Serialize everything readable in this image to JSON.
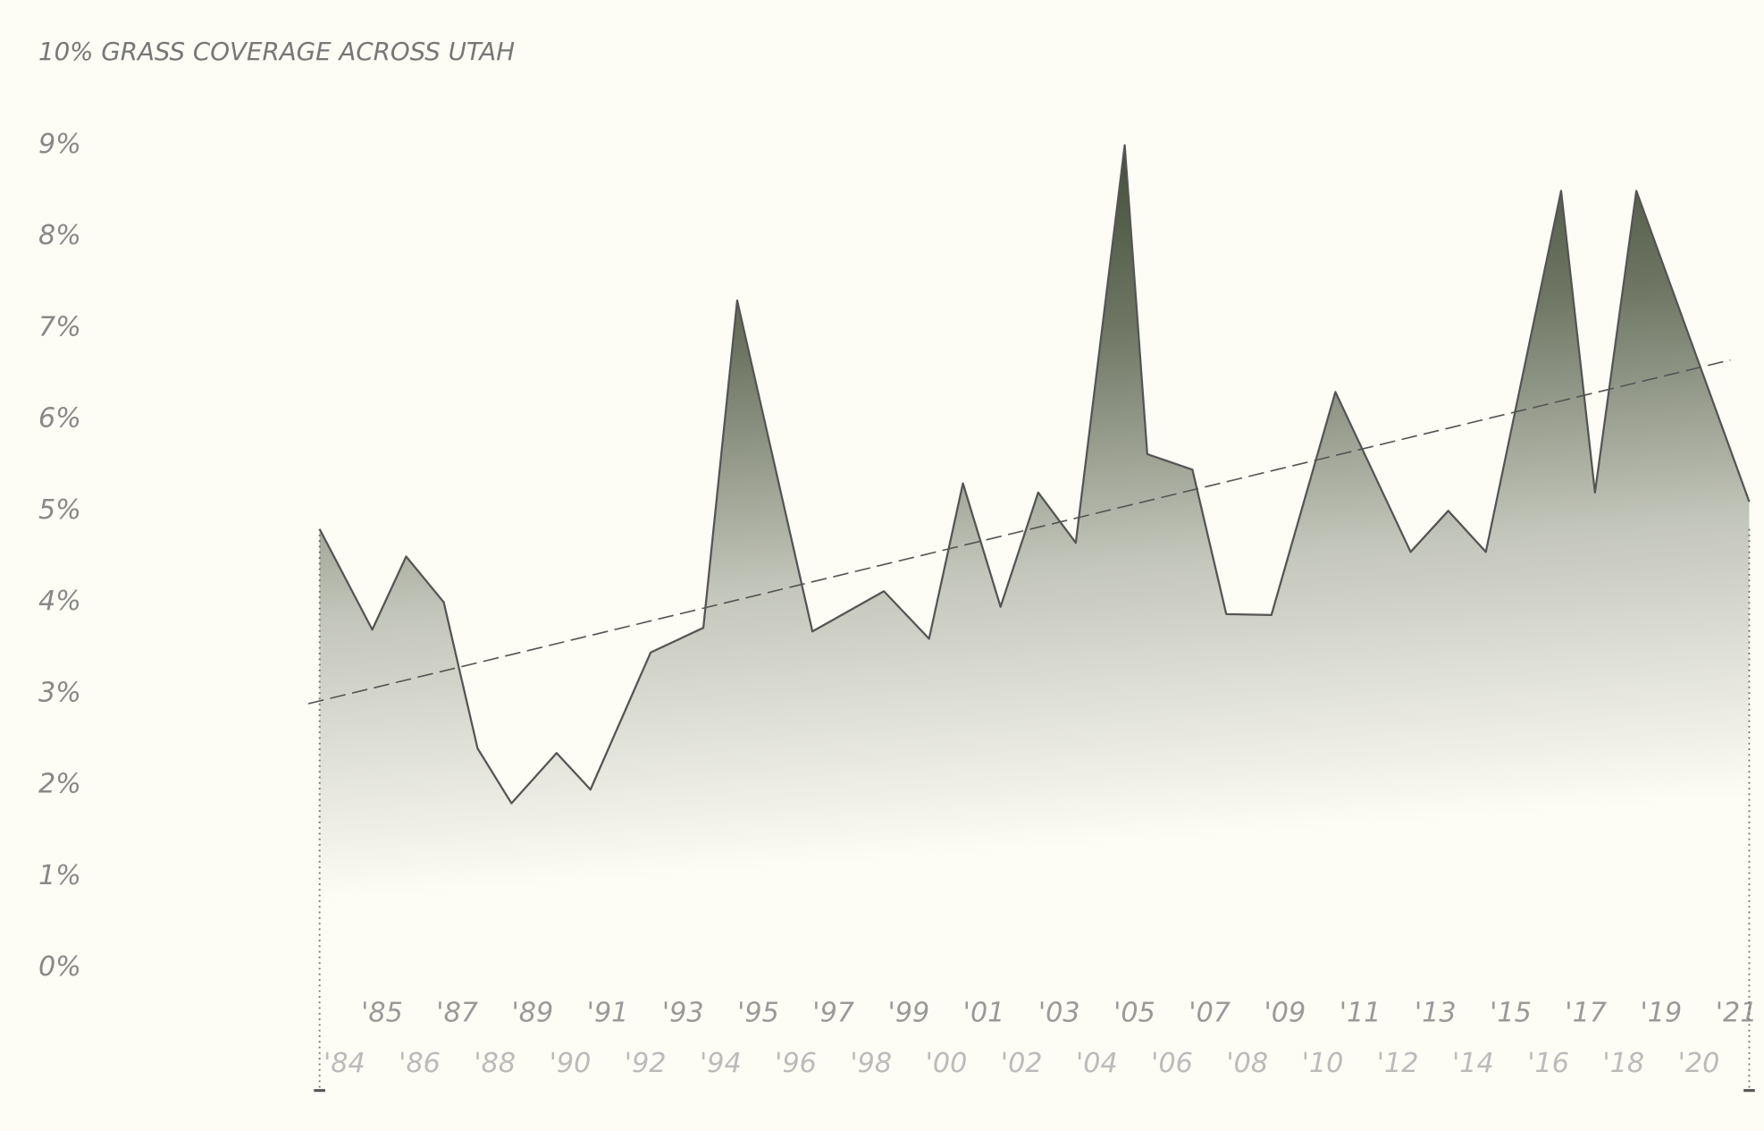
{
  "chart_data": {
    "type": "area",
    "title": "10% GRASS COVERAGE ACROSS UTAH",
    "series": [
      {
        "color": "#555555",
        "x": [
          1984.0,
          1985.4,
          1986.3,
          1987.3,
          1988.2,
          1989.1,
          1990.3,
          1991.2,
          1992.8,
          1994.2,
          1995.1,
          1997.1,
          1999.0,
          2000.2,
          2001.1,
          2002.1,
          2003.1,
          2004.1,
          2005.4,
          2006.0,
          2007.2,
          2008.1,
          2009.3,
          2011.0,
          2013.0,
          2014.0,
          2015.0,
          2017.0,
          2017.9,
          2019.0,
          2022.0
        ],
        "values": [
          4.8,
          3.7,
          4.5,
          4.0,
          2.4,
          1.8,
          2.35,
          1.95,
          3.45,
          3.72,
          7.3,
          3.68,
          4.12,
          3.6,
          5.3,
          3.95,
          5.2,
          4.65,
          9.0,
          5.62,
          5.45,
          3.87,
          3.86,
          6.3,
          4.55,
          5.0,
          4.55,
          8.5,
          5.2,
          8.5,
          5.1
        ]
      }
    ],
    "trend": {
      "x": [
        1983.7,
        2021.5
      ],
      "values": [
        2.89,
        6.65
      ],
      "color": "#555555"
    },
    "fill_color": "#3f4a33",
    "xlim": [
      1984,
      2022
    ],
    "ylim": [
      0,
      9
    ],
    "yticks": [
      {
        "value": 0,
        "label": "0%"
      },
      {
        "value": 1,
        "label": "1%"
      },
      {
        "value": 2,
        "label": "2%"
      },
      {
        "value": 3,
        "label": "3%"
      },
      {
        "value": 4,
        "label": "4%"
      },
      {
        "value": 5,
        "label": "5%"
      },
      {
        "value": 6,
        "label": "6%"
      },
      {
        "value": 7,
        "label": "7%"
      },
      {
        "value": 8,
        "label": "8%"
      },
      {
        "value": 9,
        "label": "9%"
      }
    ],
    "xticks": [
      {
        "value": 1984,
        "label": "'84"
      },
      {
        "value": 1985,
        "label": "'85"
      },
      {
        "value": 1986,
        "label": "'86"
      },
      {
        "value": 1987,
        "label": "'87"
      },
      {
        "value": 1988,
        "label": "'88"
      },
      {
        "value": 1989,
        "label": "'89"
      },
      {
        "value": 1990,
        "label": "'90"
      },
      {
        "value": 1991,
        "label": "'91"
      },
      {
        "value": 1992,
        "label": "'92"
      },
      {
        "value": 1993,
        "label": "'93"
      },
      {
        "value": 1994,
        "label": "'94"
      },
      {
        "value": 1995,
        "label": "'95"
      },
      {
        "value": 1996,
        "label": "'96"
      },
      {
        "value": 1997,
        "label": "'97"
      },
      {
        "value": 1998,
        "label": "'98"
      },
      {
        "value": 1999,
        "label": "'99"
      },
      {
        "value": 2000,
        "label": "'00"
      },
      {
        "value": 2001,
        "label": "'01"
      },
      {
        "value": 2002,
        "label": "'02"
      },
      {
        "value": 2003,
        "label": "'03"
      },
      {
        "value": 2004,
        "label": "'04"
      },
      {
        "value": 2005,
        "label": "'05"
      },
      {
        "value": 2006,
        "label": "'06"
      },
      {
        "value": 2007,
        "label": "'07"
      },
      {
        "value": 2008,
        "label": "'08"
      },
      {
        "value": 2009,
        "label": "'09"
      },
      {
        "value": 2010,
        "label": "'10"
      },
      {
        "value": 2011,
        "label": "'11"
      },
      {
        "value": 2012,
        "label": "'12"
      },
      {
        "value": 2013,
        "label": "'13"
      },
      {
        "value": 2014,
        "label": "'14"
      },
      {
        "value": 2015,
        "label": "'15"
      },
      {
        "value": 2016,
        "label": "'16"
      },
      {
        "value": 2017,
        "label": "'17"
      },
      {
        "value": 2018,
        "label": "'18"
      },
      {
        "value": 2019,
        "label": "'19"
      },
      {
        "value": 2020,
        "label": "'20"
      },
      {
        "value": 2021,
        "label": "'21"
      }
    ],
    "grid": false
  }
}
